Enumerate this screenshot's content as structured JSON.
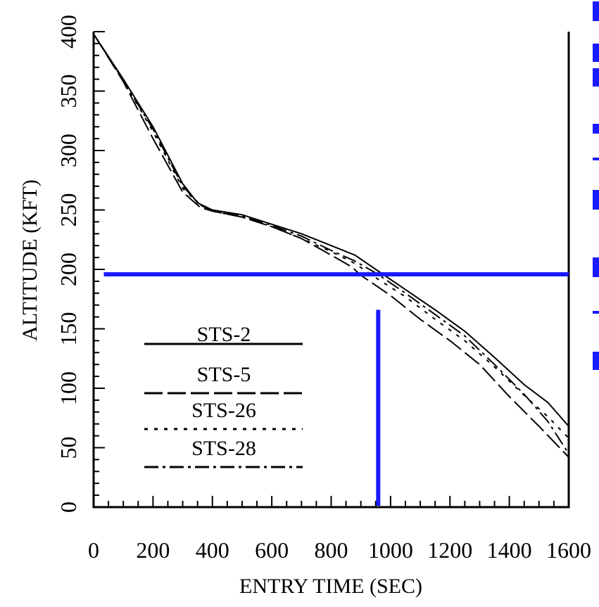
{
  "chart_data": {
    "type": "line",
    "title": "",
    "xlabel": "ENTRY TIME (SEC)",
    "ylabel": "ALTITUDE (KFT)",
    "xlim": [
      0,
      1600
    ],
    "ylim": [
      0,
      400
    ],
    "x_ticks": [
      "0",
      "200",
      "400",
      "600",
      "800",
      "1000",
      "1200",
      "1400",
      "1600"
    ],
    "y_ticks": [
      "0",
      "50",
      "100",
      "150",
      "200",
      "250",
      "300",
      "350",
      "400"
    ],
    "grid": false,
    "legend_position": "lower-left",
    "series": [
      {
        "name": "STS-2",
        "style": "solid",
        "points": [
          [
            0,
            398
          ],
          [
            100,
            360
          ],
          [
            200,
            320
          ],
          [
            300,
            272
          ],
          [
            350,
            256
          ],
          [
            400,
            250
          ],
          [
            500,
            246
          ],
          [
            600,
            238
          ],
          [
            700,
            230
          ],
          [
            800,
            220
          ],
          [
            880,
            212
          ],
          [
            950,
            200
          ],
          [
            1050,
            183
          ],
          [
            1150,
            166
          ],
          [
            1250,
            148
          ],
          [
            1350,
            126
          ],
          [
            1450,
            103
          ],
          [
            1530,
            88
          ],
          [
            1600,
            68
          ]
        ]
      },
      {
        "name": "STS-5",
        "style": "long-dash",
        "points": [
          [
            0,
            398
          ],
          [
            100,
            358
          ],
          [
            200,
            310
          ],
          [
            300,
            265
          ],
          [
            360,
            252
          ],
          [
            400,
            249
          ],
          [
            500,
            244
          ],
          [
            600,
            236
          ],
          [
            700,
            226
          ],
          [
            800,
            212
          ],
          [
            870,
            202
          ],
          [
            900,
            195
          ],
          [
            1000,
            178
          ],
          [
            1100,
            158
          ],
          [
            1200,
            140
          ],
          [
            1300,
            120
          ],
          [
            1400,
            93
          ],
          [
            1500,
            68
          ],
          [
            1600,
            42
          ]
        ]
      },
      {
        "name": "STS-26",
        "style": "dotted",
        "points": [
          [
            0,
            398
          ],
          [
            100,
            359
          ],
          [
            200,
            316
          ],
          [
            300,
            268
          ],
          [
            360,
            254
          ],
          [
            400,
            249
          ],
          [
            500,
            244
          ],
          [
            600,
            236
          ],
          [
            700,
            226
          ],
          [
            800,
            215
          ],
          [
            880,
            205
          ],
          [
            950,
            193
          ],
          [
            1050,
            177
          ],
          [
            1150,
            158
          ],
          [
            1250,
            140
          ],
          [
            1350,
            118
          ],
          [
            1450,
            94
          ],
          [
            1530,
            76
          ],
          [
            1600,
            58
          ]
        ]
      },
      {
        "name": "STS-28",
        "style": "dash-dot",
        "points": [
          [
            0,
            398
          ],
          [
            100,
            359
          ],
          [
            200,
            318
          ],
          [
            300,
            270
          ],
          [
            360,
            254
          ],
          [
            400,
            249
          ],
          [
            500,
            245
          ],
          [
            600,
            237
          ],
          [
            700,
            228
          ],
          [
            800,
            216
          ],
          [
            880,
            207
          ],
          [
            950,
            197
          ],
          [
            1050,
            180
          ],
          [
            1150,
            162
          ],
          [
            1250,
            144
          ],
          [
            1350,
            120
          ],
          [
            1450,
            95
          ],
          [
            1530,
            72
          ],
          [
            1600,
            45
          ]
        ]
      }
    ],
    "annotations": [
      {
        "type": "horizontal-line",
        "y": 200,
        "x_from": 70,
        "x_to": 1600,
        "color": "#1a1aff"
      },
      {
        "type": "vertical-line",
        "x": 975,
        "y_from": 0,
        "y_to": 166,
        "color": "#1a1aff"
      }
    ]
  }
}
